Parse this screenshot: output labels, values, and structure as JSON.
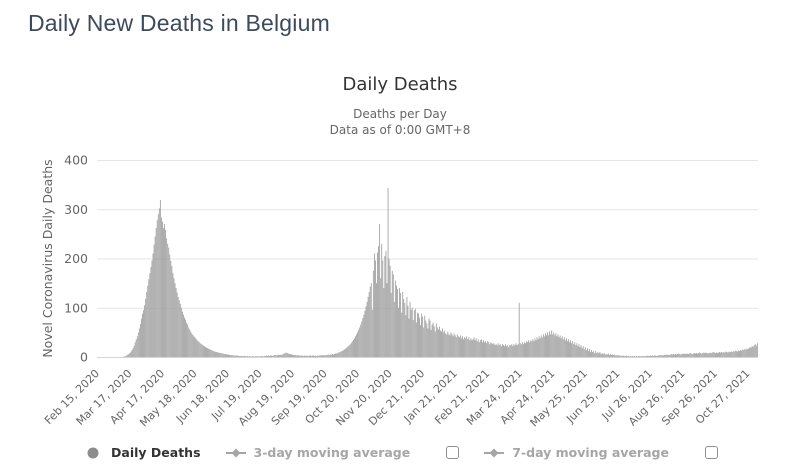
{
  "page": {
    "heading": "Daily New Deaths in Belgium"
  },
  "chart": {
    "title": "Daily Deaths",
    "subtitle_line1": "Deaths per Day",
    "subtitle_line2": "Data as of 0:00 GMT+8",
    "legend": [
      {
        "label": "Daily Deaths",
        "marker": "circle",
        "active": true,
        "checkbox": false,
        "checked": false
      },
      {
        "label": "3-day moving average",
        "marker": "diamond-line",
        "active": false,
        "checkbox": true,
        "checked": false
      },
      {
        "label": "7-day moving average",
        "marker": "diamond-line",
        "active": false,
        "checkbox": true,
        "checked": false
      }
    ],
    "colors": {
      "heading": "#3d4a5c",
      "title": "#333333",
      "subtitle": "#666666",
      "bar": "#9a9a9a",
      "grid": "#e6e6e6",
      "axis_line": "#ccd6eb",
      "label": "#666666",
      "legend_active": "#333333",
      "legend_inactive": "#a6a6a6",
      "marker_grey": "#8c8c8c"
    }
  },
  "chart_data": {
    "type": "bar",
    "title": "Daily Deaths",
    "series_name": "Daily Deaths",
    "xlabel": "",
    "ylabel": "Novel Coronavirus Daily Deaths",
    "ylim": [
      0,
      400
    ],
    "yticks": [
      0,
      100,
      200,
      300,
      400
    ],
    "grid": true,
    "legend_position": "bottom",
    "x_start_date": "Feb 15, 2020",
    "x_tick_interval_days": 31,
    "x_tick_labels": [
      "Feb 15, 2020",
      "Mar 17, 2020",
      "Apr 17, 2020",
      "May 18, 2020",
      "Jun 18, 2020",
      "Jul 19, 2020",
      "Aug 19, 2020",
      "Sep 19, 2020",
      "Oct 20, 2020",
      "Nov 20, 2020",
      "Dec 21, 2020",
      "Jan 21, 2021",
      "Feb 21, 2021",
      "Mar 24, 2021",
      "Apr 24, 2021",
      "May 25, 2021",
      "Jun 25, 2021",
      "Jul 26, 2021",
      "Aug 26, 2021",
      "Sep 26, 2021",
      "Oct 27, 2021"
    ],
    "values": [
      0,
      0,
      0,
      0,
      0,
      0,
      0,
      0,
      0,
      0,
      0,
      0,
      0,
      0,
      0,
      0,
      0,
      0,
      0,
      0,
      0,
      0,
      0,
      0,
      0,
      1,
      1,
      2,
      3,
      5,
      6,
      8,
      11,
      14,
      18,
      23,
      30,
      36,
      42,
      50,
      58,
      67,
      78,
      88,
      95,
      105,
      118,
      132,
      145,
      158,
      170,
      183,
      196,
      210,
      228,
      245,
      262,
      278,
      290,
      302,
      319,
      283,
      275,
      262,
      270,
      258,
      241,
      230,
      222,
      208,
      195,
      185,
      170,
      160,
      150,
      140,
      131,
      122,
      115,
      108,
      100,
      92,
      86,
      80,
      76,
      70,
      66,
      60,
      56,
      52,
      48,
      45,
      42,
      40,
      37,
      34,
      32,
      30,
      28,
      26,
      25,
      23,
      22,
      20,
      19,
      18,
      17,
      16,
      15,
      14,
      13,
      12,
      11,
      10,
      10,
      9,
      9,
      8,
      8,
      7,
      7,
      6,
      6,
      5,
      5,
      5,
      4,
      4,
      4,
      4,
      3,
      3,
      3,
      3,
      3,
      2,
      2,
      2,
      2,
      2,
      2,
      2,
      1,
      2,
      1,
      2,
      1,
      1,
      2,
      1,
      1,
      2,
      1,
      2,
      1,
      1,
      2,
      2,
      1,
      2,
      2,
      3,
      2,
      3,
      2,
      3,
      3,
      2,
      3,
      4,
      4,
      3,
      4,
      5,
      4,
      5,
      4,
      6,
      7,
      8,
      9,
      8,
      7,
      6,
      6,
      5,
      5,
      4,
      4,
      4,
      3,
      4,
      3,
      3,
      3,
      3,
      2,
      3,
      3,
      2,
      3,
      2,
      3,
      3,
      2,
      3,
      3,
      2,
      3,
      2,
      3,
      3,
      3,
      4,
      3,
      4,
      4,
      3,
      4,
      4,
      5,
      4,
      5,
      5,
      6,
      5,
      6,
      7,
      7,
      8,
      9,
      10,
      11,
      12,
      13,
      15,
      16,
      18,
      20,
      22,
      24,
      26,
      29,
      32,
      35,
      38,
      42,
      46,
      50,
      55,
      60,
      66,
      72,
      79,
      86,
      94,
      103,
      112,
      122,
      132,
      143,
      150,
      96,
      175,
      210,
      196,
      150,
      212,
      225,
      270,
      160,
      230,
      196,
      140,
      205,
      215,
      150,
      343,
      200,
      185,
      130,
      175,
      168,
      112,
      155,
      145,
      138,
      100,
      140,
      130,
      90,
      132,
      118,
      110,
      85,
      122,
      104,
      78,
      112,
      96,
      100,
      75,
      95,
      98,
      70,
      90,
      88,
      80,
      65,
      88,
      82,
      60,
      84,
      74,
      68,
      58,
      78,
      74,
      55,
      66,
      70,
      62,
      52,
      68,
      60,
      56,
      62,
      54,
      52,
      58,
      50,
      54,
      48,
      46,
      52,
      46,
      44,
      50,
      46,
      42,
      48,
      44,
      40,
      46,
      42,
      40,
      44,
      38,
      42,
      36,
      40,
      38,
      42,
      36,
      40,
      34,
      38,
      34,
      36,
      40,
      34,
      38,
      32,
      36,
      30,
      34,
      36,
      30,
      34,
      30,
      32,
      28,
      32,
      30,
      26,
      30,
      28,
      26,
      28,
      24,
      26,
      24,
      28,
      24,
      26,
      22,
      26,
      24,
      22,
      26,
      22,
      24,
      20,
      24,
      24,
      26,
      22,
      26,
      24,
      28,
      24,
      26,
      110,
      28,
      26,
      30,
      26,
      30,
      28,
      32,
      30,
      34,
      30,
      34,
      32,
      36,
      32,
      38,
      34,
      40,
      36,
      42,
      38,
      44,
      40,
      46,
      42,
      48,
      44,
      50,
      44,
      52,
      46,
      54,
      46,
      50,
      44,
      48,
      42,
      46,
      40,
      44,
      38,
      42,
      36,
      40,
      34,
      38,
      32,
      36,
      30,
      34,
      28,
      32,
      26,
      30,
      24,
      28,
      22,
      26,
      20,
      24,
      18,
      22,
      16,
      20,
      14,
      18,
      12,
      16,
      10,
      14,
      10,
      12,
      8,
      12,
      8,
      10,
      8,
      10,
      6,
      8,
      6,
      8,
      5,
      6,
      5,
      7,
      4,
      6,
      4,
      5,
      4,
      5,
      3,
      4,
      3,
      4,
      2,
      3,
      2,
      3,
      2,
      2,
      3,
      2,
      2,
      1,
      2,
      1,
      2,
      1,
      2,
      1,
      2,
      1,
      2,
      2,
      1,
      2,
      2,
      1,
      2,
      2,
      3,
      2,
      2,
      3,
      2,
      3,
      2,
      3,
      3,
      2,
      3,
      3,
      4,
      3,
      4,
      3,
      4,
      4,
      5,
      4,
      5,
      4,
      5,
      6,
      5,
      6,
      5,
      6,
      5,
      6,
      7,
      6,
      5,
      6,
      7,
      6,
      7,
      6,
      7,
      6,
      7,
      8,
      7,
      6,
      7,
      8,
      7,
      8,
      7,
      8,
      9,
      8,
      7,
      8,
      9,
      8,
      9,
      8,
      7,
      8,
      9,
      8,
      9,
      10,
      9,
      8,
      9,
      8,
      9,
      10,
      9,
      10,
      9,
      10,
      9,
      11,
      10,
      9,
      11,
      10,
      11,
      10,
      12,
      11,
      13,
      12,
      11,
      13,
      12,
      14,
      13,
      15,
      14,
      16,
      15,
      17,
      16,
      18,
      20,
      19,
      22,
      21,
      24,
      26,
      23,
      28
    ]
  }
}
